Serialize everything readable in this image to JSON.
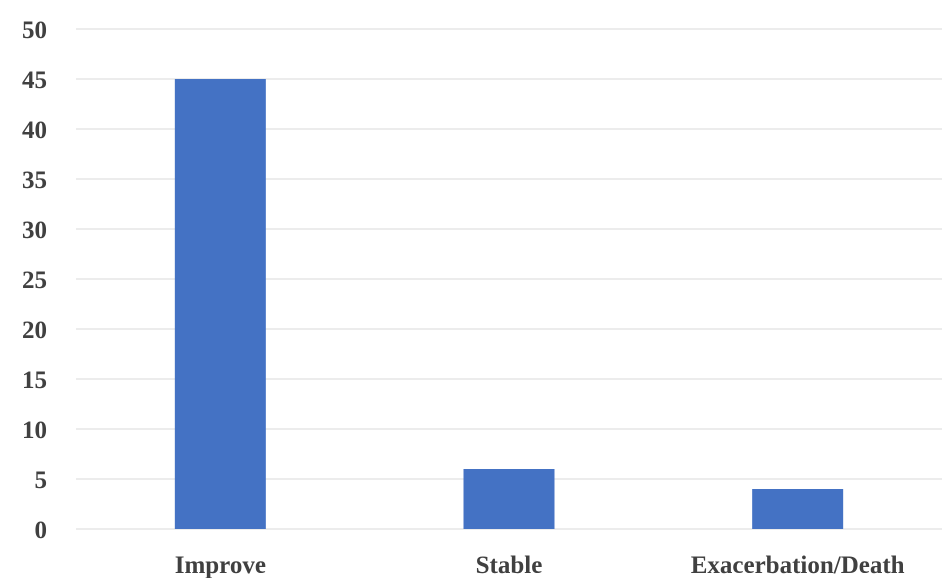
{
  "chart_data": {
    "type": "bar",
    "categories": [
      "Improve",
      "Stable",
      "Exacerbation/Death"
    ],
    "values": [
      45,
      6,
      4
    ],
    "title": "",
    "xlabel": "",
    "ylabel": "",
    "ylim": [
      0,
      50
    ],
    "yticks": [
      "0",
      "5",
      "10",
      "15",
      "20",
      "25",
      "30",
      "35",
      "40",
      "45",
      "50"
    ],
    "grid": true,
    "legend": "none",
    "bar_color": "#4472C4"
  }
}
